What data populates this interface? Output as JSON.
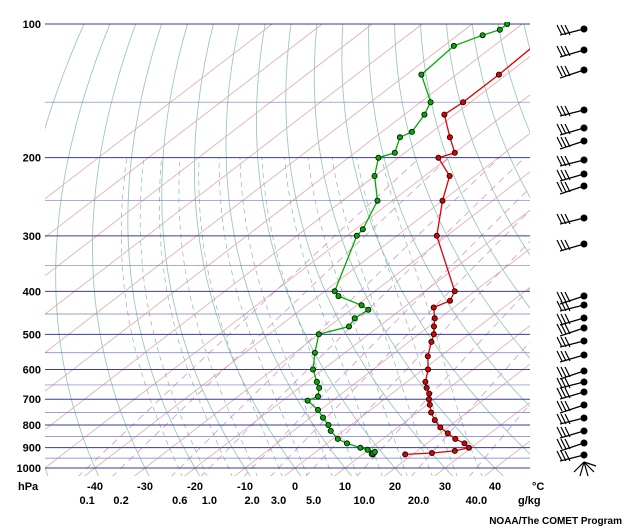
{
  "chart_data": {
    "type": "skew-t log-p sounding",
    "units": {
      "pressure": "hPa",
      "temperature": "°C",
      "mixing_ratio": "g/kg"
    },
    "pressure_ticks": [
      100,
      200,
      300,
      400,
      500,
      600,
      700,
      800,
      900,
      1000
    ],
    "temperature_ticks": [
      -40,
      -30,
      -20,
      -10,
      0,
      10,
      20,
      30,
      40
    ],
    "mixing_ratio_ticks": [
      0.1,
      0.2,
      0.6,
      1.0,
      2.0,
      3.0,
      5.0,
      10.0,
      20.0,
      40.0
    ],
    "mixing_ratio_tick_labels": [
      "0.1",
      "0.2",
      "0.6",
      "1.0",
      "2.0",
      "3.0",
      "5.0",
      "10.0",
      "20.0",
      "40.0"
    ],
    "ylim": [
      1000,
      100
    ],
    "series": [
      {
        "color": "#dd0000",
        "points": [
          [
            932,
            18.5
          ],
          [
            925,
            23.5
          ],
          [
            915,
            27.5
          ],
          [
            900,
            29.5
          ],
          [
            880,
            27.5
          ],
          [
            860,
            24.5
          ],
          [
            835,
            21.5
          ],
          [
            810,
            18.5
          ],
          [
            780,
            15.5
          ],
          [
            750,
            12.8
          ],
          [
            720,
            10.5
          ],
          [
            700,
            8.9
          ],
          [
            680,
            7.5
          ],
          [
            660,
            5.5
          ],
          [
            640,
            3.7
          ],
          [
            600,
            1.0
          ],
          [
            560,
            -2.5
          ],
          [
            520,
            -5.5
          ],
          [
            500,
            -7.0
          ],
          [
            480,
            -9.0
          ],
          [
            460,
            -11.0
          ],
          [
            435,
            -14.0
          ],
          [
            420,
            -12.5
          ],
          [
            400,
            -14.0
          ],
          [
            300,
            -32.0
          ],
          [
            250,
            -40.0
          ],
          [
            220,
            -45.0
          ],
          [
            200,
            -52.0
          ],
          [
            195,
            -50.0
          ],
          [
            180,
            -55.0
          ],
          [
            160,
            -62.0
          ],
          [
            150,
            -61.5
          ],
          [
            130,
            -61.5
          ],
          [
            112,
            -62.0
          ],
          [
            103,
            -63.0
          ],
          [
            100,
            -62.0
          ]
        ]
      },
      {
        "color": "#00aa00",
        "points": [
          [
            932,
            12.0
          ],
          [
            930,
            11.7
          ],
          [
            927,
            11.8
          ],
          [
            920,
            11.8
          ],
          [
            910,
            9.8
          ],
          [
            900,
            7.8
          ],
          [
            880,
            4.0
          ],
          [
            860,
            1.0
          ],
          [
            825,
            -2.5
          ],
          [
            800,
            -4.5
          ],
          [
            770,
            -7.5
          ],
          [
            740,
            -10.5
          ],
          [
            705,
            -15.0
          ],
          [
            690,
            -14.0
          ],
          [
            660,
            -16.0
          ],
          [
            640,
            -18.0
          ],
          [
            600,
            -22.0
          ],
          [
            550,
            -26.0
          ],
          [
            500,
            -30.0
          ],
          [
            480,
            -26.0
          ],
          [
            460,
            -27.0
          ],
          [
            440,
            -26.5
          ],
          [
            430,
            -29.0
          ],
          [
            410,
            -36.0
          ],
          [
            400,
            -38.0
          ],
          [
            300,
            -48.0
          ],
          [
            290,
            -48.5
          ],
          [
            250,
            -53.0
          ],
          [
            220,
            -60.0
          ],
          [
            200,
            -64.0
          ],
          [
            195,
            -62.0
          ],
          [
            180,
            -65.0
          ],
          [
            175,
            -64.0
          ],
          [
            160,
            -66.0
          ],
          [
            150,
            -68.0
          ],
          [
            130,
            -77.0
          ],
          [
            112,
            -78.0
          ],
          [
            106,
            -75.0
          ],
          [
            103,
            -73.0
          ],
          [
            100,
            -73.0
          ]
        ]
      }
    ]
  },
  "footer": {
    "credit": "NOAA/The COMET Program"
  }
}
